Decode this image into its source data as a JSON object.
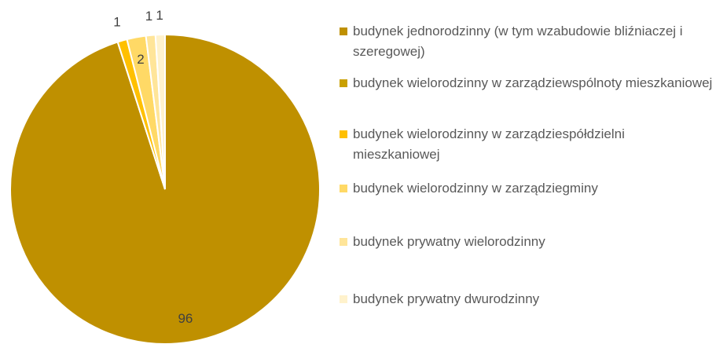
{
  "chart_data": {
    "type": "pie",
    "categories": [
      "budynek jednorodzinny (w tym wzabudowie bliźniaczej i szeregowej)",
      "budynek wielorodzinny w zarządziewspólnoty mieszkaniowej",
      "budynek wielorodzinny w zarządziespółdzielni mieszkaniowej",
      "budynek wielorodzinny w zarządziegminy",
      "budynek prywatny wielorodzinny",
      "budynek prywatny dwurodzinny"
    ],
    "values": [
      96,
      0,
      1,
      2,
      1,
      1
    ],
    "colors": [
      "#bf9000",
      "#c9a000",
      "#ffc000",
      "#ffd966",
      "#ffe599",
      "#fff2cc"
    ],
    "legend": "right"
  }
}
